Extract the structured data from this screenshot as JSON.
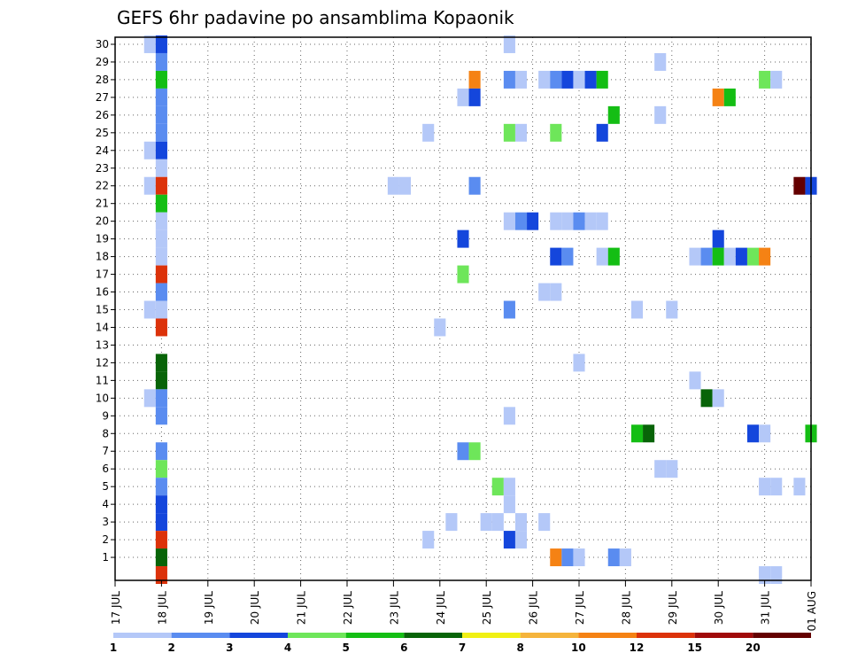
{
  "chart_data": {
    "type": "heatmap",
    "title": "GEFS 6hr padavine po ansamblima Kopaonik",
    "y_ticks": [
      "1",
      "2",
      "3",
      "4",
      "5",
      "6",
      "7",
      "8",
      "9",
      "10",
      "11",
      "12",
      "13",
      "14",
      "15",
      "16",
      "17",
      "18",
      "19",
      "20",
      "21",
      "22",
      "23",
      "24",
      "25",
      "26",
      "27",
      "28",
      "29",
      "30"
    ],
    "x_ticks": [
      "17 JUL",
      "18 JUL",
      "19 JUL",
      "20 JUL",
      "21 JUL",
      "22 JUL",
      "23 JUL",
      "24 JUL",
      "25 JUL",
      "26 JUL",
      "27 JUL",
      "28 JUL",
      "29 JUL",
      "30 JUL",
      "31 JUL",
      "01 AUG"
    ],
    "grid": true,
    "colorbar": {
      "labels": [
        "1",
        "2",
        "3",
        "4",
        "5",
        "6",
        "7",
        "8",
        "10",
        "12",
        "15",
        "20"
      ],
      "colors": [
        "#b4c8f8",
        "#5a8cf0",
        "#1446dc",
        "#6ee65a",
        "#14be14",
        "#086408",
        "#f0f014",
        "#f5b43c",
        "#f58214",
        "#dc320a",
        "#a00a0a",
        "#640000"
      ]
    },
    "cells": [
      {
        "member": 30,
        "time": "17 JUL 18Z",
        "bin": 1
      },
      {
        "member": 30,
        "time": "18 JUL 00Z",
        "bin": 3
      },
      {
        "member": 30,
        "time": "25 JUL 12Z",
        "bin": 1
      },
      {
        "member": 29,
        "time": "18 JUL 00Z",
        "bin": 2
      },
      {
        "member": 29,
        "time": "28 JUL 18Z",
        "bin": 1
      },
      {
        "member": 28,
        "time": "18 JUL 00Z",
        "bin": 5
      },
      {
        "member": 28,
        "time": "24 JUL 18Z",
        "bin": 10
      },
      {
        "member": 28,
        "time": "25 JUL 12Z",
        "bin": 2
      },
      {
        "member": 28,
        "time": "25 JUL 18Z",
        "bin": 1
      },
      {
        "member": 28,
        "time": "26 JUL 06Z",
        "bin": 1
      },
      {
        "member": 28,
        "time": "26 JUL 12Z",
        "bin": 2
      },
      {
        "member": 28,
        "time": "26 JUL 18Z",
        "bin": 3
      },
      {
        "member": 28,
        "time": "27 JUL 00Z",
        "bin": 1
      },
      {
        "member": 28,
        "time": "27 JUL 06Z",
        "bin": 3
      },
      {
        "member": 28,
        "time": "27 JUL 12Z",
        "bin": 5
      },
      {
        "member": 28,
        "time": "31 JUL 00Z",
        "bin": 4
      },
      {
        "member": 28,
        "time": "31 JUL 06Z",
        "bin": 1
      },
      {
        "member": 27,
        "time": "18 JUL 00Z",
        "bin": 2
      },
      {
        "member": 27,
        "time": "24 JUL 12Z",
        "bin": 1
      },
      {
        "member": 27,
        "time": "24 JUL 18Z",
        "bin": 3
      },
      {
        "member": 27,
        "time": "30 JUL 00Z",
        "bin": 10
      },
      {
        "member": 27,
        "time": "30 JUL 06Z",
        "bin": 5
      },
      {
        "member": 26,
        "time": "18 JUL 00Z",
        "bin": 2
      },
      {
        "member": 26,
        "time": "27 JUL 18Z",
        "bin": 5
      },
      {
        "member": 26,
        "time": "28 JUL 18Z",
        "bin": 1
      },
      {
        "member": 25,
        "time": "18 JUL 00Z",
        "bin": 2
      },
      {
        "member": 25,
        "time": "23 JUL 18Z",
        "bin": 1
      },
      {
        "member": 25,
        "time": "25 JUL 12Z",
        "bin": 4
      },
      {
        "member": 25,
        "time": "25 JUL 18Z",
        "bin": 1
      },
      {
        "member": 25,
        "time": "26 JUL 12Z",
        "bin": 4
      },
      {
        "member": 25,
        "time": "27 JUL 12Z",
        "bin": 3
      },
      {
        "member": 24,
        "time": "17 JUL 18Z",
        "bin": 1
      },
      {
        "member": 24,
        "time": "18 JUL 00Z",
        "bin": 3
      },
      {
        "member": 23,
        "time": "18 JUL 00Z",
        "bin": 1
      },
      {
        "member": 22,
        "time": "17 JUL 18Z",
        "bin": 1
      },
      {
        "member": 22,
        "time": "18 JUL 00Z",
        "bin": 12
      },
      {
        "member": 22,
        "time": "23 JUL 00Z",
        "bin": 1
      },
      {
        "member": 22,
        "time": "23 JUL 06Z",
        "bin": 1
      },
      {
        "member": 22,
        "time": "24 JUL 18Z",
        "bin": 2
      },
      {
        "member": 22,
        "time": "31 JUL 18Z",
        "bin": 20
      },
      {
        "member": 22,
        "time": "01 AUG 00Z",
        "bin": 3
      },
      {
        "member": 21,
        "time": "18 JUL 00Z",
        "bin": 5
      },
      {
        "member": 20,
        "time": "18 JUL 00Z",
        "bin": 1
      },
      {
        "member": 20,
        "time": "25 JUL 12Z",
        "bin": 1
      },
      {
        "member": 20,
        "time": "25 JUL 18Z",
        "bin": 2
      },
      {
        "member": 20,
        "time": "26 JUL 00Z",
        "bin": 3
      },
      {
        "member": 20,
        "time": "26 JUL 12Z",
        "bin": 1
      },
      {
        "member": 20,
        "time": "26 JUL 18Z",
        "bin": 1
      },
      {
        "member": 20,
        "time": "27 JUL 00Z",
        "bin": 2
      },
      {
        "member": 20,
        "time": "27 JUL 06Z",
        "bin": 1
      },
      {
        "member": 20,
        "time": "27 JUL 12Z",
        "bin": 1
      },
      {
        "member": 19,
        "time": "18 JUL 00Z",
        "bin": 1
      },
      {
        "member": 19,
        "time": "24 JUL 12Z",
        "bin": 3
      },
      {
        "member": 19,
        "time": "30 JUL 00Z",
        "bin": 3
      },
      {
        "member": 18,
        "time": "18 JUL 00Z",
        "bin": 1
      },
      {
        "member": 18,
        "time": "26 JUL 12Z",
        "bin": 3
      },
      {
        "member": 18,
        "time": "26 JUL 18Z",
        "bin": 2
      },
      {
        "member": 18,
        "time": "27 JUL 12Z",
        "bin": 1
      },
      {
        "member": 18,
        "time": "27 JUL 18Z",
        "bin": 5
      },
      {
        "member": 18,
        "time": "29 JUL 12Z",
        "bin": 1
      },
      {
        "member": 18,
        "time": "29 JUL 18Z",
        "bin": 2
      },
      {
        "member": 18,
        "time": "30 JUL 00Z",
        "bin": 5
      },
      {
        "member": 18,
        "time": "30 JUL 06Z",
        "bin": 1
      },
      {
        "member": 18,
        "time": "30 JUL 12Z",
        "bin": 3
      },
      {
        "member": 18,
        "time": "30 JUL 18Z",
        "bin": 4
      },
      {
        "member": 18,
        "time": "31 JUL 00Z",
        "bin": 10
      },
      {
        "member": 17,
        "time": "18 JUL 00Z",
        "bin": 12
      },
      {
        "member": 17,
        "time": "24 JUL 12Z",
        "bin": 4
      },
      {
        "member": 16,
        "time": "18 JUL 00Z",
        "bin": 2
      },
      {
        "member": 16,
        "time": "26 JUL 06Z",
        "bin": 1
      },
      {
        "member": 16,
        "time": "26 JUL 12Z",
        "bin": 1
      },
      {
        "member": 15,
        "time": "17 JUL 18Z",
        "bin": 1
      },
      {
        "member": 15,
        "time": "18 JUL 00Z",
        "bin": 1
      },
      {
        "member": 15,
        "time": "25 JUL 12Z",
        "bin": 2
      },
      {
        "member": 15,
        "time": "28 JUL 06Z",
        "bin": 1
      },
      {
        "member": 15,
        "time": "29 JUL 00Z",
        "bin": 1
      },
      {
        "member": 14,
        "time": "18 JUL 00Z",
        "bin": 12
      },
      {
        "member": 14,
        "time": "24 JUL 00Z",
        "bin": 1
      },
      {
        "member": 12,
        "time": "18 JUL 00Z",
        "bin": 6
      },
      {
        "member": 12,
        "time": "27 JUL 00Z",
        "bin": 1
      },
      {
        "member": 11,
        "time": "18 JUL 00Z",
        "bin": 6
      },
      {
        "member": 11,
        "time": "29 JUL 12Z",
        "bin": 1
      },
      {
        "member": 10,
        "time": "17 JUL 18Z",
        "bin": 1
      },
      {
        "member": 10,
        "time": "18 JUL 00Z",
        "bin": 2
      },
      {
        "member": 10,
        "time": "29 JUL 18Z",
        "bin": 6
      },
      {
        "member": 10,
        "time": "30 JUL 00Z",
        "bin": 1
      },
      {
        "member": 9,
        "time": "18 JUL 00Z",
        "bin": 2
      },
      {
        "member": 9,
        "time": "25 JUL 12Z",
        "bin": 1
      },
      {
        "member": 8,
        "time": "28 JUL 06Z",
        "bin": 5
      },
      {
        "member": 8,
        "time": "28 JUL 12Z",
        "bin": 6
      },
      {
        "member": 8,
        "time": "30 JUL 18Z",
        "bin": 3
      },
      {
        "member": 8,
        "time": "31 JUL 00Z",
        "bin": 1
      },
      {
        "member": 8,
        "time": "01 AUG 00Z",
        "bin": 5
      },
      {
        "member": 7,
        "time": "18 JUL 00Z",
        "bin": 2
      },
      {
        "member": 7,
        "time": "24 JUL 12Z",
        "bin": 2
      },
      {
        "member": 7,
        "time": "24 JUL 18Z",
        "bin": 4
      },
      {
        "member": 6,
        "time": "18 JUL 00Z",
        "bin": 4
      },
      {
        "member": 6,
        "time": "28 JUL 18Z",
        "bin": 1
      },
      {
        "member": 6,
        "time": "29 JUL 00Z",
        "bin": 1
      },
      {
        "member": 5,
        "time": "18 JUL 00Z",
        "bin": 2
      },
      {
        "member": 5,
        "time": "25 JUL 06Z",
        "bin": 4
      },
      {
        "member": 5,
        "time": "25 JUL 12Z",
        "bin": 1
      },
      {
        "member": 5,
        "time": "31 JUL 00Z",
        "bin": 1
      },
      {
        "member": 5,
        "time": "31 JUL 06Z",
        "bin": 1
      },
      {
        "member": 5,
        "time": "31 JUL 18Z",
        "bin": 1
      },
      {
        "member": 4,
        "time": "18 JUL 00Z",
        "bin": 3
      },
      {
        "member": 4,
        "time": "25 JUL 12Z",
        "bin": 1
      },
      {
        "member": 3,
        "time": "18 JUL 00Z",
        "bin": 3
      },
      {
        "member": 3,
        "time": "24 JUL 06Z",
        "bin": 1
      },
      {
        "member": 3,
        "time": "25 JUL 00Z",
        "bin": 1
      },
      {
        "member": 3,
        "time": "25 JUL 06Z",
        "bin": 1
      },
      {
        "member": 3,
        "time": "25 JUL 18Z",
        "bin": 1
      },
      {
        "member": 3,
        "time": "26 JUL 06Z",
        "bin": 1
      },
      {
        "member": 2,
        "time": "18 JUL 00Z",
        "bin": 12
      },
      {
        "member": 2,
        "time": "23 JUL 18Z",
        "bin": 1
      },
      {
        "member": 2,
        "time": "25 JUL 12Z",
        "bin": 3
      },
      {
        "member": 2,
        "time": "25 JUL 18Z",
        "bin": 1
      },
      {
        "member": 1,
        "time": "18 JUL 00Z",
        "bin": 6
      },
      {
        "member": 1,
        "time": "26 JUL 12Z",
        "bin": 10
      },
      {
        "member": 1,
        "time": "26 JUL 18Z",
        "bin": 2
      },
      {
        "member": 1,
        "time": "27 JUL 00Z",
        "bin": 1
      },
      {
        "member": 1,
        "time": "27 JUL 18Z",
        "bin": 2
      },
      {
        "member": 1,
        "time": "28 JUL 00Z",
        "bin": 1
      },
      {
        "member": 0,
        "time": "18 JUL 00Z",
        "bin": 12
      },
      {
        "member": 0,
        "time": "31 JUL 00Z",
        "bin": 1
      },
      {
        "member": 0,
        "time": "31 JUL 06Z",
        "bin": 1
      }
    ]
  }
}
